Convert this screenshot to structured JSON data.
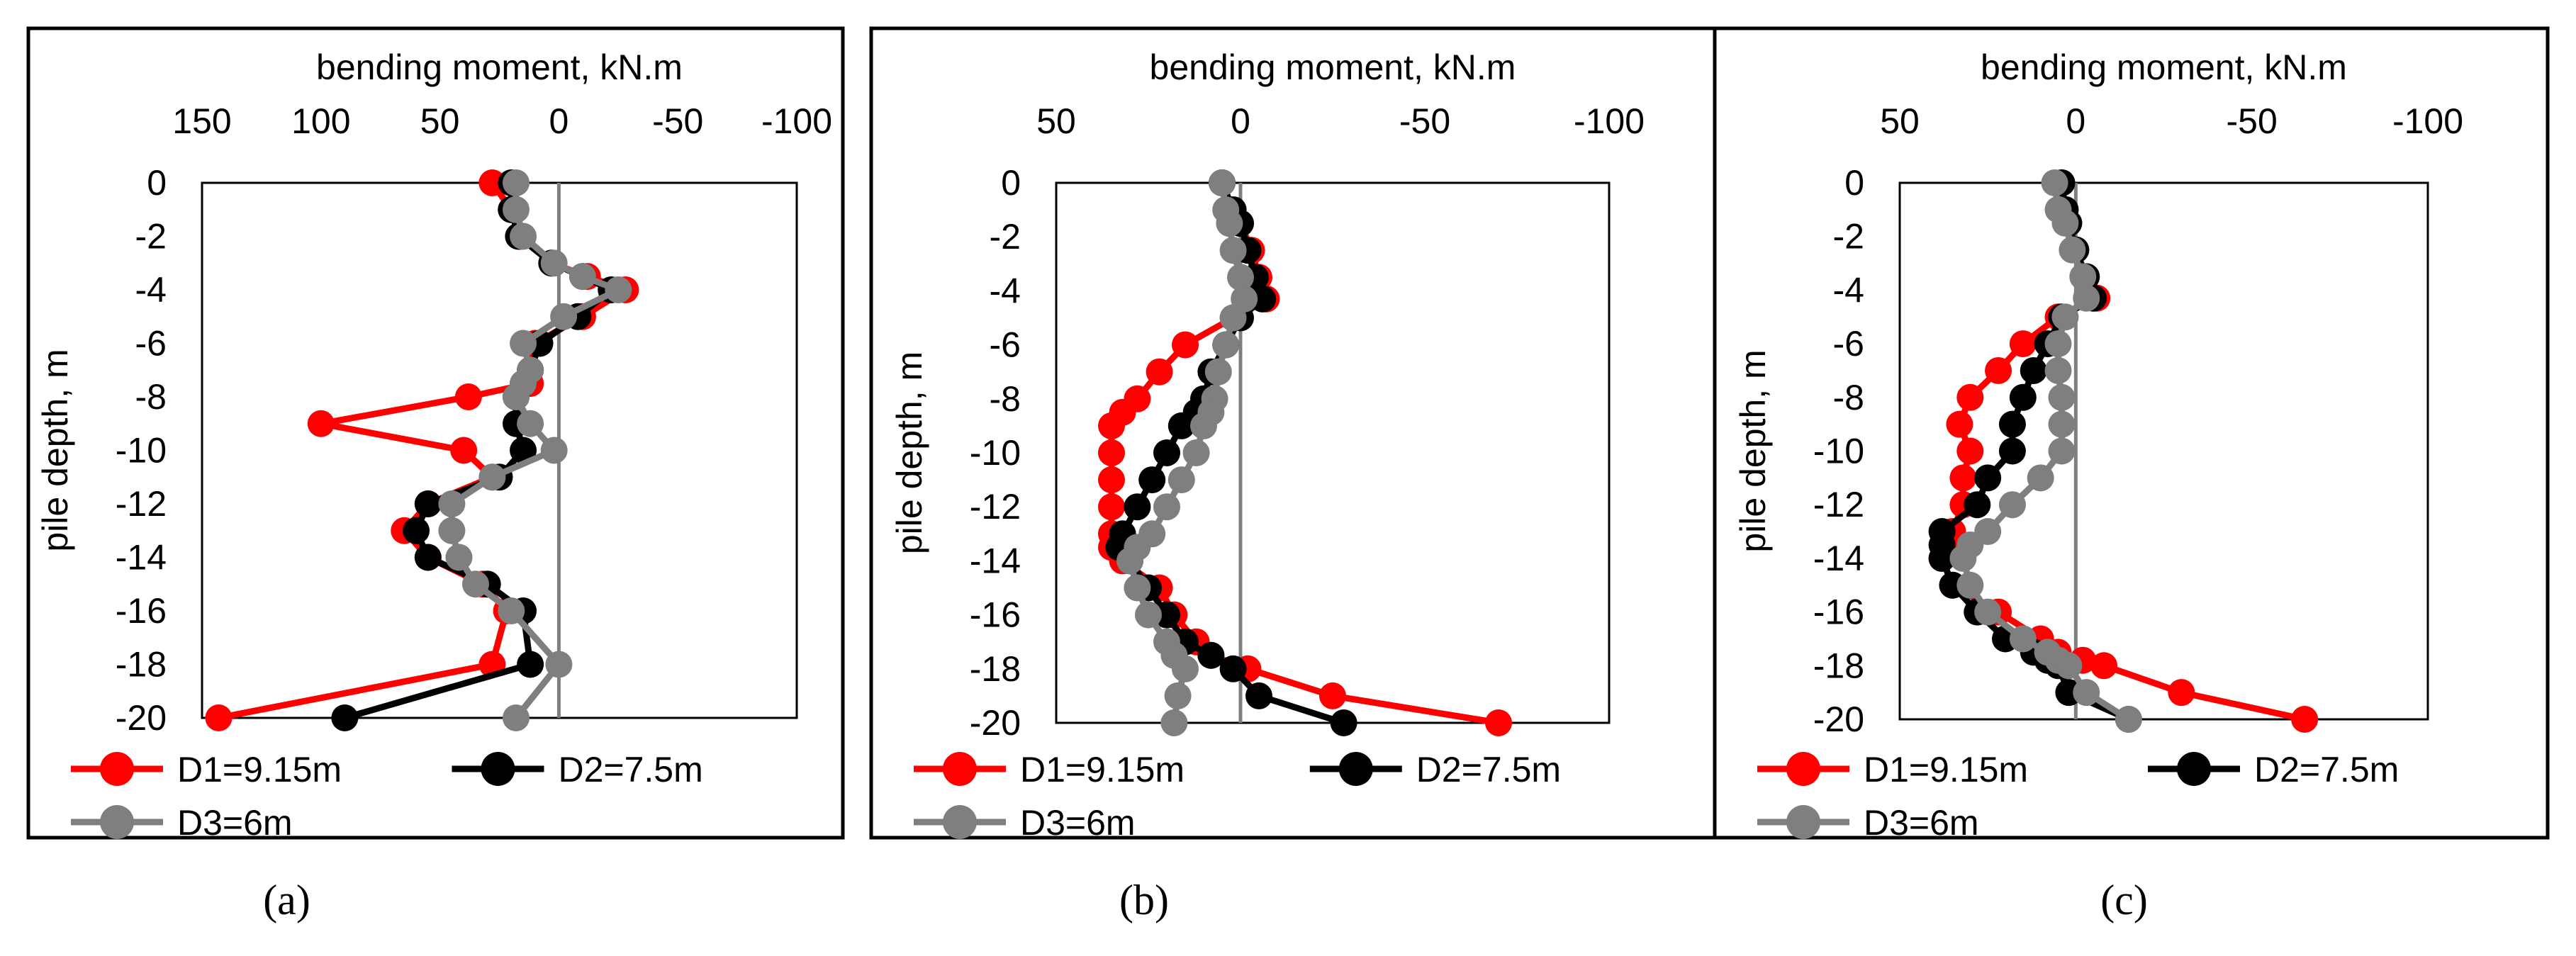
{
  "colors": {
    "series": [
      "#ff0000",
      "#000000",
      "#7f7f7f"
    ],
    "zero_line": "#7f7f7f",
    "frame": "#000000"
  },
  "legend_entries": [
    "D1=9.15m",
    "D2=7.5m",
    "D3=6m"
  ],
  "chart_data": [
    {
      "type": "line",
      "panel_label": "a",
      "caption": "(a)",
      "title": "bending moment, kN.m",
      "xlabel": "bending moment, kN.m",
      "ylabel": "pile depth, m",
      "x_axis_position": "top",
      "x_reversed": true,
      "xlim": [
        150,
        -100
      ],
      "ylim": [
        -20,
        0
      ],
      "x_ticks": [
        150,
        100,
        50,
        0,
        -50,
        -100
      ],
      "x_tick_labels": [
        "150",
        "100",
        "50",
        "0",
        "-50",
        "-100"
      ],
      "y_ticks": [
        0,
        -2,
        -4,
        -6,
        -8,
        -10,
        -12,
        -14,
        -16,
        -18,
        -20
      ],
      "y_tick_labels": [
        "0",
        "-2",
        "-4",
        "-6",
        "-8",
        "-10",
        "-12",
        "-14",
        "-16",
        "-18",
        "-20"
      ],
      "legend_position": "bottom",
      "series": [
        {
          "name": "D1=9.15m",
          "x": [
            28,
            20,
            16,
            3,
            -12,
            -28,
            -10,
            10,
            12,
            12,
            38,
            100,
            40,
            28,
            55,
            65,
            55,
            32,
            22,
            28,
            143
          ],
          "y": [
            0,
            -1,
            -2,
            -3,
            -3.5,
            -4,
            -5,
            -6,
            -7,
            -7.5,
            -8,
            -9,
            -10,
            -11,
            -12,
            -13,
            -14,
            -15,
            -16,
            -18,
            -20
          ]
        },
        {
          "name": "D2=7.5m",
          "x": [
            20,
            20,
            17,
            3,
            -10,
            -22,
            -8,
            8,
            12,
            15,
            18,
            18,
            15,
            25,
            55,
            60,
            55,
            30,
            15,
            12,
            90
          ],
          "y": [
            0,
            -1,
            -2,
            -3,
            -3.5,
            -4,
            -5,
            -6,
            -7,
            -7.5,
            -8,
            -9,
            -10,
            -11,
            -12,
            -13,
            -14,
            -15,
            -16,
            -18,
            -20
          ]
        },
        {
          "name": "D3=6m",
          "x": [
            18,
            18,
            15,
            2,
            -10,
            -25,
            -2,
            15,
            12,
            15,
            18,
            12,
            2,
            28,
            45,
            45,
            42,
            35,
            20,
            0,
            18
          ],
          "y": [
            0,
            -1,
            -2,
            -3,
            -3.5,
            -4,
            -5,
            -6,
            -7,
            -7.5,
            -8,
            -9,
            -10,
            -11,
            -12,
            -13,
            -14,
            -15,
            -16,
            -18,
            -20
          ]
        }
      ]
    },
    {
      "type": "line",
      "panel_label": "b",
      "caption": "(b)",
      "title": "bending moment, kN.m",
      "xlabel": "bending moment, kN.m",
      "ylabel": "pile depth, m",
      "x_axis_position": "top",
      "x_reversed": true,
      "xlim": [
        50,
        -100
      ],
      "ylim": [
        -20,
        0
      ],
      "x_ticks": [
        50,
        0,
        -50,
        -100
      ],
      "x_tick_labels": [
        "50",
        "0",
        "-50",
        "-100"
      ],
      "y_ticks": [
        0,
        -2,
        -4,
        -6,
        -8,
        -10,
        -12,
        -14,
        -16,
        -18,
        -20
      ],
      "y_tick_labels": [
        "0",
        "-2",
        "-4",
        "-6",
        "-8",
        "-10",
        "-12",
        "-14",
        "-16",
        "-18",
        "-20"
      ],
      "legend_position": "bottom",
      "series": [
        {
          "name": "D1=9.15m",
          "x": [
            5,
            2,
            0,
            -3,
            -5,
            -7,
            2,
            15,
            22,
            28,
            32,
            35,
            35,
            35,
            35,
            35,
            35,
            32,
            22,
            18,
            12,
            8,
            -2,
            -25,
            -70
          ],
          "y": [
            0,
            -1,
            -1.5,
            -2.5,
            -3.5,
            -4.3,
            -5,
            -6,
            -7,
            -8,
            -8.5,
            -9,
            -10,
            -11,
            -12,
            -13,
            -13.5,
            -14,
            -15,
            -16,
            -17,
            -17.5,
            -18,
            -19,
            -20
          ]
        },
        {
          "name": "D2=7.5m",
          "x": [
            5,
            2,
            0,
            -2,
            -4,
            -6,
            0,
            4,
            8,
            10,
            12,
            16,
            20,
            24,
            28,
            32,
            33,
            30,
            25,
            20,
            15,
            8,
            2,
            -5,
            -28
          ],
          "y": [
            0,
            -1,
            -1.5,
            -2.5,
            -3.5,
            -4.3,
            -5,
            -6,
            -7,
            -8,
            -8.5,
            -9,
            -10,
            -11,
            -12,
            -13,
            -13.5,
            -14,
            -15,
            -16,
            -17,
            -17.5,
            -18,
            -19,
            -20
          ]
        },
        {
          "name": "D3=6m",
          "x": [
            5,
            4,
            3,
            2,
            0,
            -1,
            2,
            4,
            6,
            7,
            8,
            10,
            12,
            16,
            20,
            24,
            28,
            30,
            28,
            25,
            20,
            18,
            15,
            17,
            18
          ],
          "y": [
            0,
            -1,
            -1.5,
            -2.5,
            -3.5,
            -4.3,
            -5,
            -6,
            -7,
            -8,
            -8.5,
            -9,
            -10,
            -11,
            -12,
            -13,
            -13.5,
            -14,
            -15,
            -16,
            -17,
            -17.5,
            -18,
            -19,
            -20
          ]
        }
      ]
    },
    {
      "type": "line",
      "panel_label": "c",
      "caption": "(c)",
      "title": "bending moment, kN.m",
      "xlabel": "bending moment, kN.m",
      "ylabel": "pile depth, m",
      "x_axis_position": "top",
      "x_reversed": true,
      "xlim": [
        50,
        -100
      ],
      "ylim": [
        -20,
        0
      ],
      "x_ticks": [
        50,
        0,
        -50,
        -100
      ],
      "x_tick_labels": [
        "50",
        "0",
        "-50",
        "-100"
      ],
      "y_ticks": [
        0,
        -2,
        -4,
        -6,
        -8,
        -10,
        -12,
        -14,
        -16,
        -18,
        -20
      ],
      "y_tick_labels": [
        "0",
        "-2",
        "-4",
        "-6",
        "-8",
        "-10",
        "-12",
        "-14",
        "-16",
        "-18",
        "-20"
      ],
      "legend_position": "bottom",
      "series": [
        {
          "name": "D1=9.15m",
          "x": [
            4,
            3,
            2,
            0,
            -3,
            -6,
            5,
            15,
            22,
            30,
            33,
            30,
            32,
            32,
            35,
            35,
            38,
            35,
            22,
            10,
            5,
            -2,
            -8,
            -30,
            -65
          ],
          "y": [
            0,
            -1,
            -1.5,
            -2.5,
            -3.5,
            -4.3,
            -5,
            -6,
            -7,
            -8,
            -9,
            -10,
            -11,
            -12,
            -13,
            -13.5,
            -14,
            -15,
            -16,
            -17,
            -17.5,
            -17.8,
            -18,
            -19,
            -20
          ]
        },
        {
          "name": "D2=7.5m",
          "x": [
            4,
            3,
            2,
            0,
            -3,
            -5,
            4,
            8,
            12,
            15,
            18,
            18,
            25,
            28,
            38,
            38,
            38,
            35,
            28,
            20,
            12,
            8,
            5,
            2,
            -15
          ],
          "y": [
            0,
            -1,
            -1.5,
            -2.5,
            -3.5,
            -4.3,
            -5,
            -6,
            -7,
            -8,
            -9,
            -10,
            -11,
            -12,
            -13,
            -13.5,
            -14,
            -15,
            -16,
            -17,
            -17.5,
            -17.8,
            -18,
            -19,
            -20
          ]
        },
        {
          "name": "D3=6m",
          "x": [
            6,
            5,
            3,
            1,
            -2,
            -3,
            3,
            5,
            5,
            4,
            4,
            4,
            10,
            18,
            25,
            30,
            32,
            30,
            25,
            15,
            8,
            5,
            2,
            -3,
            -15
          ],
          "y": [
            0,
            -1,
            -1.5,
            -2.5,
            -3.5,
            -4.3,
            -5,
            -6,
            -7,
            -8,
            -9,
            -10,
            -11,
            -12,
            -13,
            -13.5,
            -14,
            -15,
            -16,
            -17,
            -17.5,
            -17.8,
            -18,
            -19,
            -20
          ]
        }
      ]
    }
  ]
}
